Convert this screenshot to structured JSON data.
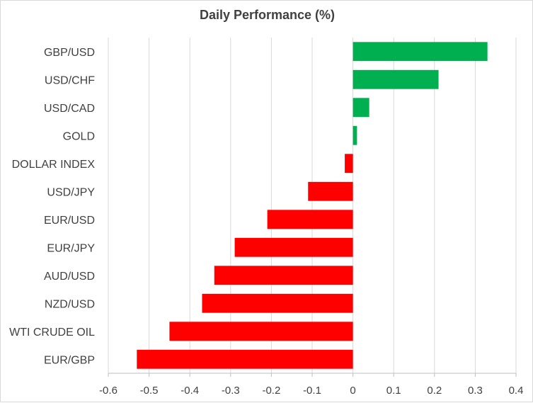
{
  "chart_data": {
    "type": "bar",
    "orientation": "horizontal",
    "title": "Daily Performance (%)",
    "categories": [
      "GBP/USD",
      "USD/CHF",
      "USD/CAD",
      "GOLD",
      "DOLLAR INDEX",
      "USD/JPY",
      "EUR/USD",
      "EUR/JPY",
      "AUD/USD",
      "NZD/USD",
      "WTI CRUDE OIL",
      "EUR/GBP"
    ],
    "values": [
      0.33,
      0.21,
      0.04,
      0.01,
      -0.02,
      -0.11,
      -0.21,
      -0.29,
      -0.34,
      -0.37,
      -0.45,
      -0.53
    ],
    "xlim": [
      -0.6,
      0.4
    ],
    "xticks": [
      "-0.6",
      "-0.5",
      "-0.4",
      "-0.3",
      "-0.2",
      "-0.1",
      "0",
      "0.1",
      "0.2",
      "0.3",
      "0.4"
    ],
    "grid": true,
    "colors": {
      "positive": "#00b050",
      "negative": "#ff0000",
      "grid": "#d9d9d9",
      "axis": "#bfbfbf"
    }
  }
}
